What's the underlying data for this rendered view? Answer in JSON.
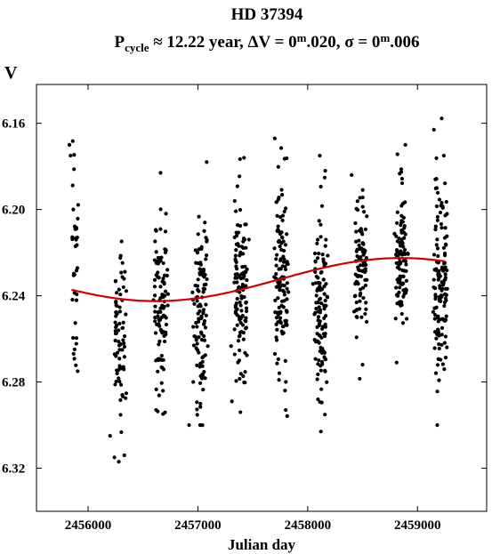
{
  "chart_data": {
    "type": "scatter",
    "title": "HD 37394",
    "subtitle": {
      "p": "P",
      "p_sub": "cycle",
      "period": " ≈ 12.22 year, ",
      "dv_label": "ΔV = 0",
      "dv_sup": "m",
      "dv_value": ".020, ",
      "sigma_label": "σ = 0",
      "sigma_sup": "m",
      "sigma_value": ".006"
    },
    "xlabel": "Julian day",
    "ylabel": "V",
    "xlim": [
      2455530,
      2459630
    ],
    "ylim": [
      6.34,
      6.142
    ],
    "y_inverted": true,
    "x_ticks": [
      2456000,
      2457000,
      2458000,
      2459000
    ],
    "x_tick_labels": [
      "2456000",
      "2457000",
      "2458000",
      "2459000"
    ],
    "y_ticks": [
      6.16,
      6.2,
      6.24,
      6.28,
      6.32
    ],
    "y_tick_labels": [
      "6.16",
      "6.20",
      "6.24",
      "6.28",
      "6.32"
    ],
    "grid": false,
    "seasons": [
      {
        "center": 2455880,
        "width": 45,
        "n": 36,
        "mean": 6.226,
        "sd": 0.022
      },
      {
        "center": 2456290,
        "width": 90,
        "n": 75,
        "mean": 6.26,
        "sd": 0.018
      },
      {
        "center": 2456660,
        "width": 110,
        "n": 105,
        "mean": 6.243,
        "sd": 0.02
      },
      {
        "center": 2457020,
        "width": 110,
        "n": 110,
        "mean": 6.245,
        "sd": 0.021
      },
      {
        "center": 2457390,
        "width": 115,
        "n": 120,
        "mean": 6.238,
        "sd": 0.022
      },
      {
        "center": 2457760,
        "width": 115,
        "n": 125,
        "mean": 6.232,
        "sd": 0.023
      },
      {
        "center": 2458120,
        "width": 110,
        "n": 115,
        "mean": 6.245,
        "sd": 0.021
      },
      {
        "center": 2458480,
        "width": 100,
        "n": 95,
        "mean": 6.228,
        "sd": 0.016
      },
      {
        "center": 2458850,
        "width": 100,
        "n": 105,
        "mean": 6.225,
        "sd": 0.015
      },
      {
        "center": 2459210,
        "width": 110,
        "n": 135,
        "mean": 6.232,
        "sd": 0.023
      }
    ],
    "outliers": [
      {
        "x": 2455840,
        "y": 6.175
      },
      {
        "x": 2455830,
        "y": 6.17
      },
      {
        "x": 2455905,
        "y": 6.275
      },
      {
        "x": 2456240,
        "y": 6.315
      },
      {
        "x": 2456280,
        "y": 6.317
      },
      {
        "x": 2456330,
        "y": 6.314
      },
      {
        "x": 2456200,
        "y": 6.305
      },
      {
        "x": 2456620,
        "y": 6.293
      },
      {
        "x": 2456660,
        "y": 6.183
      },
      {
        "x": 2456920,
        "y": 6.3
      },
      {
        "x": 2457020,
        "y": 6.3
      },
      {
        "x": 2457080,
        "y": 6.178
      },
      {
        "x": 2457310,
        "y": 6.289
      },
      {
        "x": 2457420,
        "y": 6.176
      },
      {
        "x": 2457700,
        "y": 6.167
      },
      {
        "x": 2457800,
        "y": 6.293
      },
      {
        "x": 2458110,
        "y": 6.175
      },
      {
        "x": 2458120,
        "y": 6.303
      },
      {
        "x": 2458400,
        "y": 6.184
      },
      {
        "x": 2458500,
        "y": 6.272
      },
      {
        "x": 2458810,
        "y": 6.271
      },
      {
        "x": 2458890,
        "y": 6.17
      },
      {
        "x": 2459150,
        "y": 6.163
      },
      {
        "x": 2459180,
        "y": 6.3
      },
      {
        "x": 2459240,
        "y": 6.175
      }
    ],
    "fit": {
      "mean": 6.2325,
      "amplitude": 0.01,
      "period_days": 4463,
      "t_max": 2458850,
      "color": "#d00000",
      "x_range": [
        2455850,
        2459250
      ]
    },
    "point_color": "#000000"
  }
}
